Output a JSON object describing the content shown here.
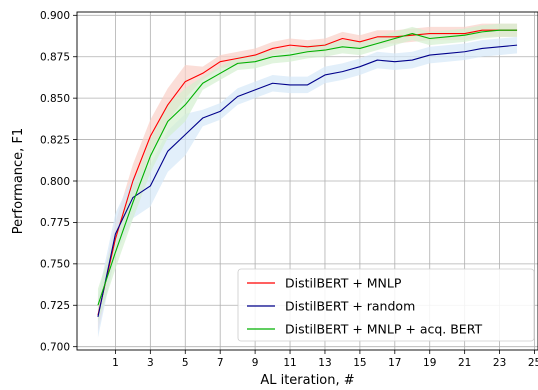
{
  "chart_data": {
    "type": "line",
    "title": "",
    "xlabel": "AL iteration, #",
    "ylabel": "Performance, F1",
    "xlim": [
      -1.2,
      25.2
    ],
    "ylim": [
      0.698,
      0.902
    ],
    "xticks": [
      1,
      3,
      5,
      7,
      9,
      11,
      13,
      15,
      17,
      19,
      21,
      23,
      25
    ],
    "yticks": [
      0.7,
      0.725,
      0.75,
      0.775,
      0.8,
      0.825,
      0.85,
      0.875,
      0.9
    ],
    "ytick_labels": [
      "0.700",
      "0.725",
      "0.750",
      "0.775",
      "0.800",
      "0.825",
      "0.850",
      "0.875",
      "0.900"
    ],
    "grid": true,
    "legend_position": "bottom-right",
    "x": [
      0,
      1,
      2,
      3,
      4,
      5,
      6,
      7,
      8,
      9,
      10,
      11,
      12,
      13,
      14,
      15,
      16,
      17,
      18,
      19,
      20,
      21,
      22,
      23,
      24
    ],
    "series": [
      {
        "name": "DistilBERT + MNLP",
        "color": "#ff0000",
        "band": "#f9d0c8",
        "values": [
          0.719,
          0.765,
          0.8,
          0.827,
          0.846,
          0.86,
          0.865,
          0.872,
          0.874,
          0.876,
          0.88,
          0.882,
          0.881,
          0.882,
          0.886,
          0.884,
          0.887,
          0.887,
          0.888,
          0.889,
          0.889,
          0.889,
          0.891,
          0.891,
          0.891
        ],
        "spread": 0.004
      },
      {
        "name": "DistilBERT + random",
        "color": "#00008b",
        "band": "#d6e8f8",
        "values": [
          0.718,
          0.768,
          0.79,
          0.797,
          0.818,
          0.828,
          0.838,
          0.842,
          0.851,
          0.855,
          0.859,
          0.858,
          0.858,
          0.864,
          0.866,
          0.869,
          0.873,
          0.872,
          0.873,
          0.876,
          0.877,
          0.878,
          0.88,
          0.881,
          0.882
        ],
        "spread": 0.005
      },
      {
        "name": "DistilBERT + MNLP + acq. BERT",
        "color": "#00b000",
        "band": "#d4f0d0",
        "values": [
          0.725,
          0.757,
          0.787,
          0.815,
          0.836,
          0.846,
          0.859,
          0.865,
          0.871,
          0.872,
          0.875,
          0.876,
          0.878,
          0.879,
          0.881,
          0.88,
          0.883,
          0.886,
          0.889,
          0.886,
          0.887,
          0.888,
          0.89,
          0.891,
          0.891
        ],
        "spread": 0.004
      }
    ]
  }
}
